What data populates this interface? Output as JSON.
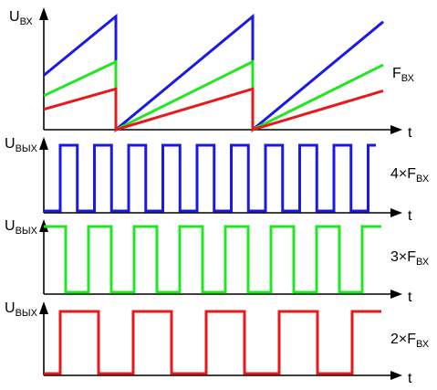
{
  "labels": {
    "u_in_main": "U",
    "u_in_sub": "ВХ",
    "u_out_main": "U",
    "u_out_sub": "ВЫХ",
    "t": "t",
    "f_in_main": "F",
    "f_in_sub": "ВХ",
    "f4_prefix": "4×F",
    "f3_prefix": "3×F",
    "f2_prefix": "2×F",
    "f_sub": "ВХ"
  },
  "colors": {
    "blue": "#1a1ae6",
    "green": "#22e622",
    "red": "#e61a1a",
    "axis": "#000000"
  },
  "chart_data": [
    {
      "type": "line",
      "description_role": "input sawtooth",
      "series": [
        {
          "color": "blue",
          "values_per_period": {
            "start": 0.48,
            "end": 1.0
          }
        },
        {
          "color": "green",
          "values_per_period": {
            "start": 0.3,
            "end": 0.6
          }
        },
        {
          "color": "red",
          "values_per_period": {
            "start": 0.18,
            "end": 0.36
          }
        }
      ],
      "periods_shown": 3
    },
    {
      "type": "line",
      "color": "blue",
      "waveform": "square",
      "cycles_per_input_period": 4
    },
    {
      "type": "line",
      "color": "green",
      "waveform": "square",
      "cycles_per_input_period": 3
    },
    {
      "type": "line",
      "color": "red",
      "waveform": "square",
      "cycles_per_input_period": 2
    }
  ]
}
